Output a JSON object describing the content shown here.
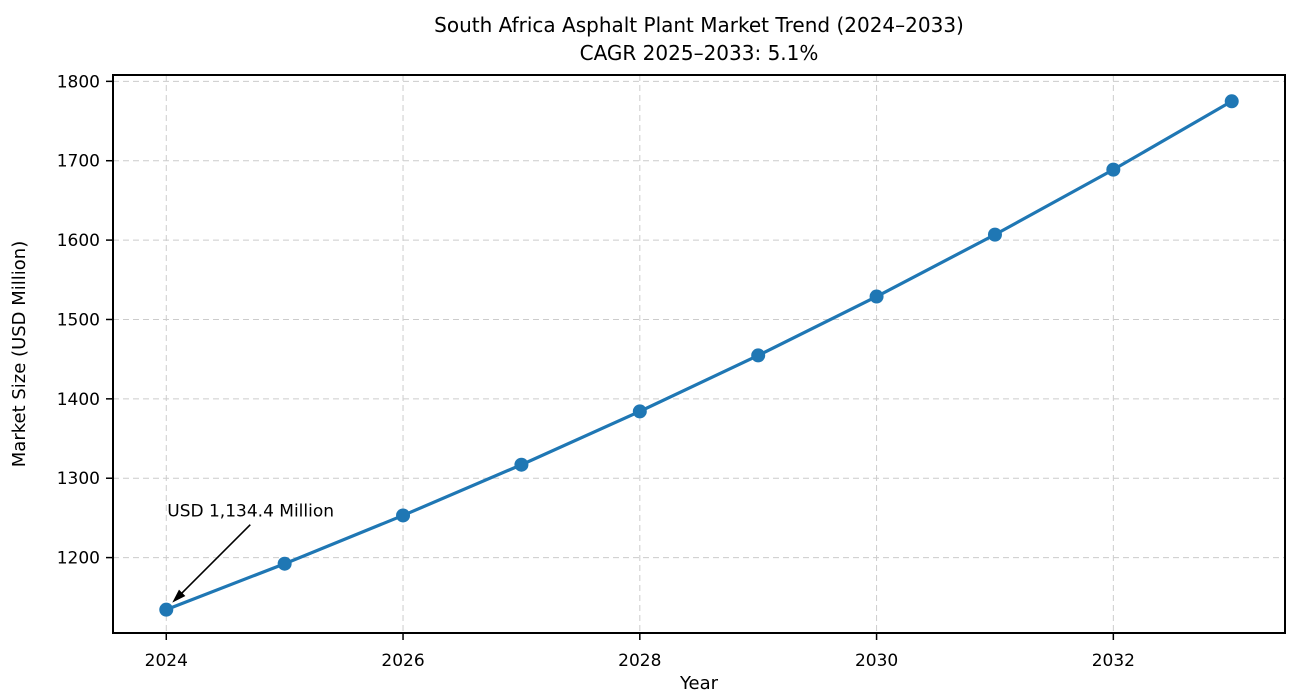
{
  "page": {
    "background": "#ffffff"
  },
  "chart_data": {
    "type": "line",
    "title": "South Africa Asphalt Plant Market Trend (2024–2033)",
    "subtitle": "CAGR 2025–2033: 5.1%",
    "xlabel": "Year",
    "ylabel": "Market Size (USD Million)",
    "x": [
      2024,
      2025,
      2026,
      2027,
      2028,
      2029,
      2030,
      2031,
      2032,
      2033
    ],
    "series": [
      {
        "name": "Market Size",
        "values": [
          1134.4,
          1192.3,
          1253.1,
          1317.0,
          1384.2,
          1454.7,
          1528.9,
          1606.9,
          1688.8,
          1774.9
        ],
        "color": "#1f77b4",
        "marker": "circle",
        "line_width": 3.2,
        "marker_radius": 7
      }
    ],
    "xlim": [
      2023.55,
      2033.45
    ],
    "ylim": [
      1105,
      1808
    ],
    "xticks": [
      2024,
      2026,
      2028,
      2030,
      2032
    ],
    "yticks": [
      1200,
      1300,
      1400,
      1500,
      1600,
      1700,
      1800
    ],
    "grid": true,
    "grid_color": "#cccccc",
    "grid_style": "dashed",
    "axis_color": "#000000",
    "text_color": "#000000",
    "legend_position": "none",
    "annotation": {
      "text": "USD 1,134.4 Million",
      "target_x": 2024,
      "target_y": 1134.4,
      "arrow_color": "#000000"
    }
  }
}
